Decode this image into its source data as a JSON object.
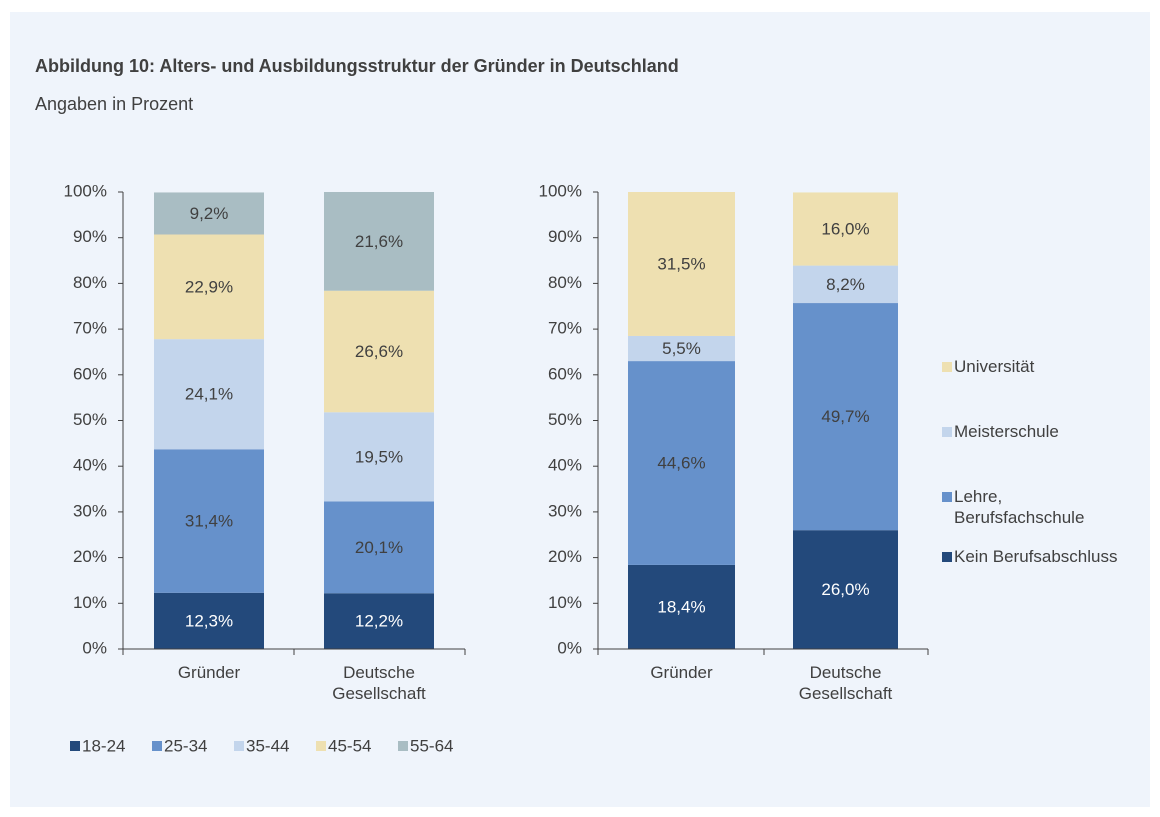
{
  "title": "Abbildung 10: Alters- und Ausbildungsstruktur der Gründer in Deutschland",
  "subtitle": "Angaben in Prozent",
  "chart_data": [
    {
      "type": "stacked_bar",
      "categories": [
        "Gründer",
        "Deutsche Gesellschaft"
      ],
      "series": [
        {
          "name": "18-24",
          "color": "#23497b",
          "label_color": "#ffffff",
          "values": [
            12.3,
            12.2
          ],
          "value_labels": [
            "12,3%",
            "12,2%"
          ]
        },
        {
          "name": "25-34",
          "color": "#6691cb",
          "label_color": "#404040",
          "values": [
            31.4,
            20.1
          ],
          "value_labels": [
            "31,4%",
            "20,1%"
          ]
        },
        {
          "name": "35-44",
          "color": "#c3d5ec",
          "label_color": "#404040",
          "values": [
            24.1,
            19.5
          ],
          "value_labels": [
            "24,1%",
            "19,5%"
          ]
        },
        {
          "name": "45-54",
          "color": "#eee0b1",
          "label_color": "#404040",
          "values": [
            22.9,
            26.6
          ],
          "value_labels": [
            "22,9%",
            "26,6%"
          ]
        },
        {
          "name": "55-64",
          "color": "#a9bdc3",
          "label_color": "#404040",
          "values": [
            9.2,
            21.6
          ],
          "value_labels": [
            "9,2%",
            "21,6%"
          ]
        }
      ],
      "ylim": [
        0,
        100
      ],
      "yticks": [
        {
          "value": 0,
          "label": "0%"
        },
        {
          "value": 10,
          "label": "10%"
        },
        {
          "value": 20,
          "label": "20%"
        },
        {
          "value": 30,
          "label": "30%"
        },
        {
          "value": 40,
          "label": "40%"
        },
        {
          "value": 50,
          "label": "50%"
        },
        {
          "value": 60,
          "label": "60%"
        },
        {
          "value": 70,
          "label": "70%"
        },
        {
          "value": 80,
          "label": "80%"
        },
        {
          "value": 90,
          "label": "90%"
        },
        {
          "value": 100,
          "label": "100%"
        }
      ],
      "legend": "bottom"
    },
    {
      "type": "stacked_bar",
      "categories": [
        "Gründer",
        "Deutsche Gesellschaft"
      ],
      "series": [
        {
          "name": "Kein Berufsabschluss",
          "color": "#23497b",
          "label_color": "#ffffff",
          "values": [
            18.4,
            26.0
          ],
          "value_labels": [
            "18,4%",
            "26,0%"
          ]
        },
        {
          "name": "Lehre, Berufsfachschule",
          "color": "#6691cb",
          "label_color": "#404040",
          "values": [
            44.6,
            49.7
          ],
          "value_labels": [
            "44,6%",
            "49,7%"
          ]
        },
        {
          "name": "Meisterschule",
          "color": "#c3d5ec",
          "label_color": "#404040",
          "values": [
            5.5,
            8.2
          ],
          "value_labels": [
            "5,5%",
            "8,2%"
          ]
        },
        {
          "name": "Universität",
          "color": "#eee0b1",
          "label_color": "#404040",
          "values": [
            31.5,
            16.0
          ],
          "value_labels": [
            "31,5%",
            "16,0%"
          ]
        }
      ],
      "ylim": [
        0,
        100
      ],
      "yticks": [
        {
          "value": 0,
          "label": "0%"
        },
        {
          "value": 10,
          "label": "10%"
        },
        {
          "value": 20,
          "label": "20%"
        },
        {
          "value": 30,
          "label": "30%"
        },
        {
          "value": 40,
          "label": "40%"
        },
        {
          "value": 50,
          "label": "50%"
        },
        {
          "value": 60,
          "label": "60%"
        },
        {
          "value": 70,
          "label": "70%"
        },
        {
          "value": 80,
          "label": "80%"
        },
        {
          "value": 90,
          "label": "90%"
        },
        {
          "value": 100,
          "label": "100%"
        }
      ],
      "legend": "right"
    }
  ]
}
